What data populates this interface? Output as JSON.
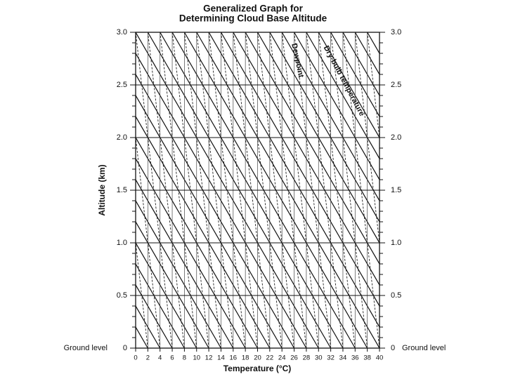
{
  "chart_data": {
    "type": "reference-grid",
    "title": [
      "Generalized Graph for",
      "Determining Cloud Base Altitude"
    ],
    "x_label": "Temperature (°C)",
    "y_label": "Altitude (km)",
    "annotations": [
      "Dewpoint",
      "Dry-bulb temperature",
      "Ground level",
      "Ground level"
    ],
    "xlim": [
      0,
      40
    ],
    "xticks": [
      0,
      2,
      4,
      6,
      8,
      10,
      12,
      14,
      16,
      18,
      20,
      22,
      24,
      26,
      28,
      30,
      32,
      34,
      36,
      38,
      40
    ],
    "ylim": [
      0,
      3
    ],
    "yticks": [
      0,
      {
        "value": 0.5,
        "label": "0.5"
      },
      {
        "value": 1,
        "label": "1.0"
      },
      {
        "value": 1.5,
        "label": "1.5"
      },
      {
        "value": 2,
        "label": "2.0"
      },
      {
        "value": 2.5,
        "label": "2.5"
      },
      {
        "value": 3,
        "label": "3.0"
      }
    ],
    "grid": true
  }
}
